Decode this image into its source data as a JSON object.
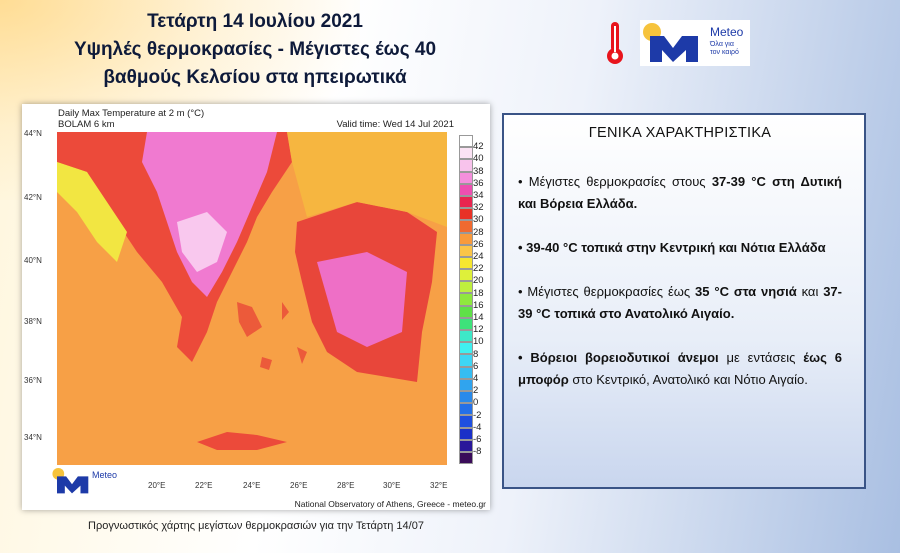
{
  "header": {
    "title_lines": [
      "Τετάρτη 14 Ιουλίου 2021",
      "Υψηλές θερμοκρασίες -  Μέγιστες έως 40",
      "βαθμούς Κελσίου στα ηπειρωτικά"
    ]
  },
  "logo": {
    "name": "Meteo",
    "tagline_1": "Όλα για",
    "tagline_2": "τον καιρό",
    "icon": "thermometer-icon",
    "brand_color": "#1d3aa8"
  },
  "map": {
    "title": "Daily Max Temperature at 2 m (°C)",
    "model": "BOLAM 6 km",
    "valid_time": "Valid time: Wed 14 Jul 2021",
    "lat_labels": [
      "44°N",
      "42°N",
      "40°N",
      "38°N",
      "36°N",
      "34°N"
    ],
    "lon_labels": [
      "20°E",
      "22°E",
      "24°E",
      "26°E",
      "28°E",
      "30°E",
      "32°E"
    ],
    "colorbar_labels": [
      "42",
      "40",
      "38",
      "36",
      "34",
      "32",
      "30",
      "28",
      "26",
      "24",
      "22",
      "20",
      "18",
      "16",
      "14",
      "12",
      "10",
      "8",
      "6",
      "4",
      "2",
      "0",
      "-2",
      "-4",
      "-6",
      "-8"
    ],
    "colorbar_colors": [
      "#ffffff",
      "#fbe3f4",
      "#f8c3ec",
      "#f48fdc",
      "#ee4fb0",
      "#e8244f",
      "#e83226",
      "#f06a30",
      "#f89a3c",
      "#fbc548",
      "#f6e630",
      "#def03a",
      "#bfef3e",
      "#8fe83e",
      "#5fe048",
      "#3ee27a",
      "#3ee8c8",
      "#40f0f0",
      "#3ed6f4",
      "#36bdf2",
      "#30a4ee",
      "#2a8aea",
      "#2470e8",
      "#1e4fe0",
      "#1a30c8",
      "#2a189a",
      "#3a0c5a"
    ],
    "credit": "National Observatory of Athens, Greece - meteo.gr"
  },
  "caption": "Προγνωστικός χάρτης μεγίστων θερμοκρασιών για την Τετάρτη 14/07",
  "summary": {
    "heading": "ΓΕΝΙΚΑ ΧΑΡΑΚΤΗΡΙΣΤΙΚΑ",
    "b1": {
      "t1": "• Μέγιστες θερμοκρασίες στους ",
      "b1": "37-39 °C στη Δυτική και Βόρεια Ελλάδα."
    },
    "b2": {
      "b1": "• 39-40 °C τοπικά στην Κεντρική και Νότια Ελλάδα"
    },
    "b3": {
      "t1": "• Μέγιστες θερμοκρασίες έως ",
      "b1": "35 °C στα νησιά",
      "t2": " και ",
      "b2": "37-39 °C τοπικά στο Ανατολικό Αιγαίο."
    },
    "b4": {
      "b1": "• Βόρειοι βορειοδυτικοί άνεμοι",
      "t1": " με εντάσεις ",
      "b2": "έως 6 μποφόρ",
      "t2": " στο Κεντρικό, Ανατολικό και Νότιο Αιγαίο."
    }
  }
}
